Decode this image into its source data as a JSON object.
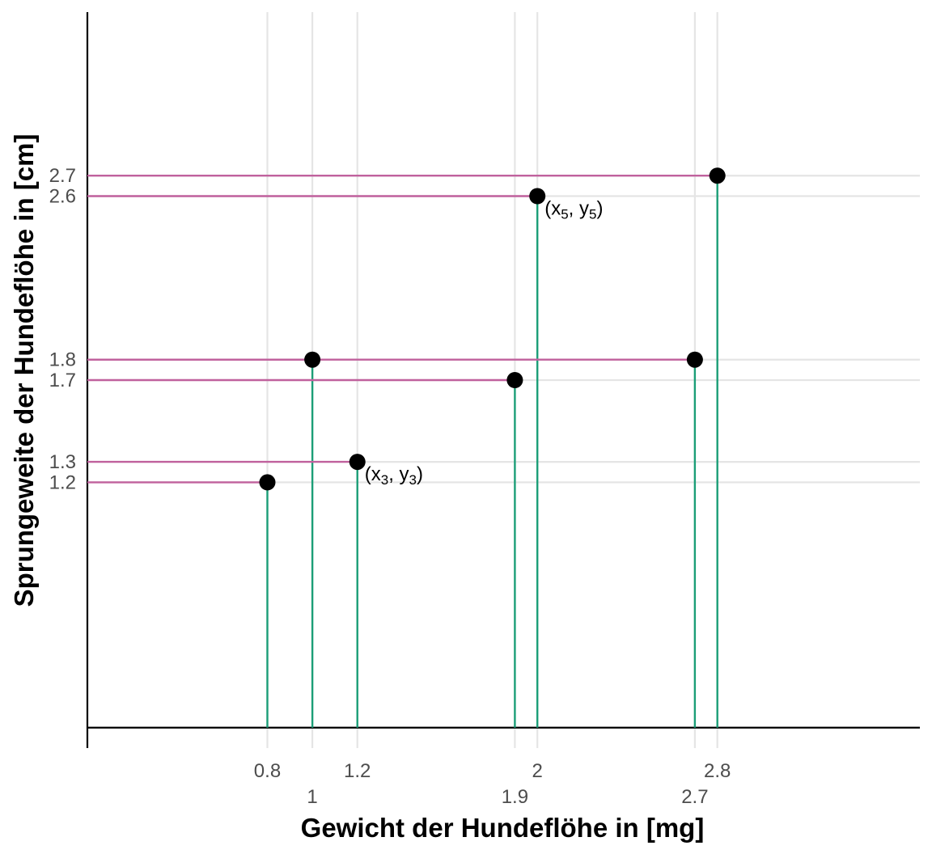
{
  "chart_data": {
    "type": "scatter",
    "title": "",
    "xlabel": "Gewicht der Hundeflöhe in [mg]",
    "ylabel": "Sprungeweite der Hundeflöhe in [cm]",
    "xlim": [
      0.0,
      3.7
    ],
    "ylim": [
      -0.1,
      3.5
    ],
    "grid": "major lines at data x and y values only",
    "legend": "none",
    "points": [
      {
        "x": 0.8,
        "y": 1.2
      },
      {
        "x": 1.0,
        "y": 1.8
      },
      {
        "x": 1.2,
        "y": 1.3
      },
      {
        "x": 1.9,
        "y": 1.7
      },
      {
        "x": 2.0,
        "y": 2.6
      },
      {
        "x": 2.7,
        "y": 1.8
      },
      {
        "x": 2.8,
        "y": 2.7
      }
    ],
    "x_ticks_upper": [
      {
        "value": 0.8,
        "label": "0.8"
      },
      {
        "value": 1.2,
        "label": "1.2"
      },
      {
        "value": 2.0,
        "label": "2"
      },
      {
        "value": 2.8,
        "label": "2.8"
      }
    ],
    "x_ticks_lower": [
      {
        "value": 1.0,
        "label": "1"
      },
      {
        "value": 1.9,
        "label": "1.9"
      },
      {
        "value": 2.7,
        "label": "2.7"
      }
    ],
    "y_ticks": [
      {
        "value": 1.2,
        "label": "1.2"
      },
      {
        "value": 1.3,
        "label": "1.3"
      },
      {
        "value": 1.7,
        "label": "1.7"
      },
      {
        "value": 1.8,
        "label": "1.8"
      },
      {
        "value": 2.6,
        "label": "2.6"
      },
      {
        "value": 2.7,
        "label": "2.7"
      }
    ],
    "annotations": [
      {
        "x": 1.2,
        "y": 1.3,
        "base": "(x",
        "sub1": "3",
        "mid": ", y",
        "sub2": "3",
        "end": ")"
      },
      {
        "x": 2.0,
        "y": 2.6,
        "base": "(x",
        "sub1": "5",
        "mid": ", y",
        "sub2": "5",
        "end": ")"
      }
    ],
    "colors": {
      "vertical_segment": "#1b9e77",
      "horizontal_segment": "#c0619d",
      "point": "#000000",
      "grid": "#e5e5e5",
      "axis": "#000000"
    }
  }
}
